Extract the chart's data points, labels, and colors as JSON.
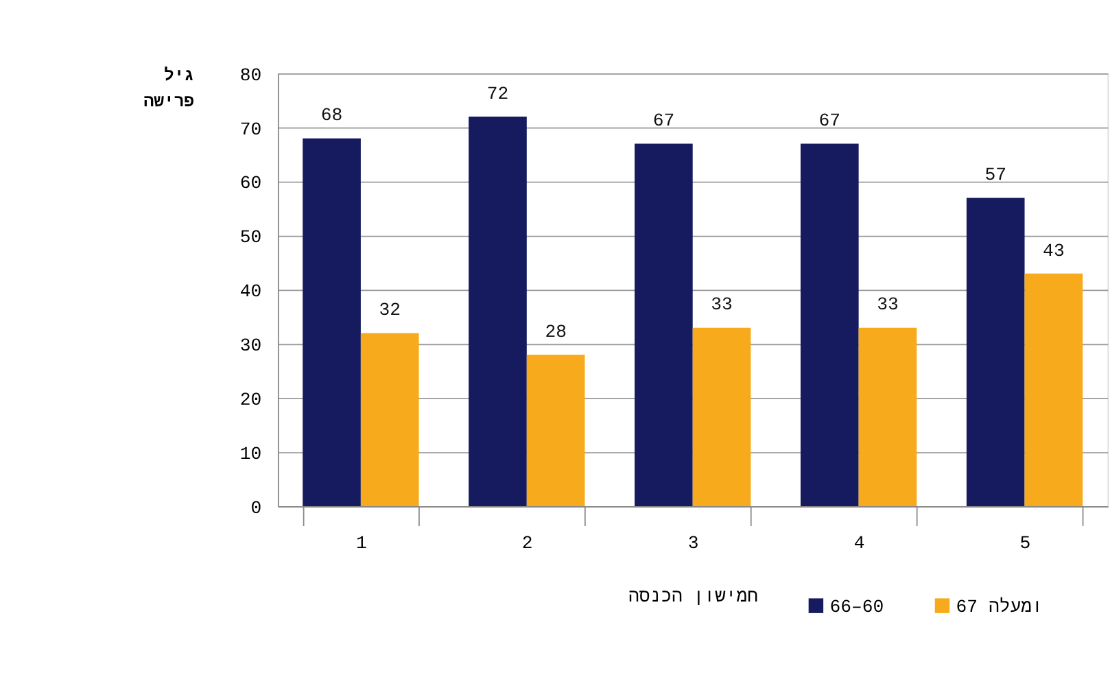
{
  "chart_data": {
    "type": "bar",
    "categories": [
      "1",
      "2",
      "3",
      "4",
      "5"
    ],
    "xlabel": "חמישון הכנסה",
    "ylabel": "גיל\nפרישה",
    "series": [
      {
        "name": "66–60",
        "color": "#161b60",
        "values": [
          68,
          72,
          67,
          67,
          57
        ]
      },
      {
        "name": "67 ומעלה",
        "color": "#f7aa1c",
        "values": [
          32,
          28,
          33,
          33,
          43
        ]
      }
    ],
    "ylim": [
      0,
      80
    ],
    "yticks": [
      0,
      10,
      20,
      30,
      40,
      50,
      60,
      70,
      80
    ],
    "grid": "y",
    "data_labels": true,
    "legend": "bottom right"
  }
}
